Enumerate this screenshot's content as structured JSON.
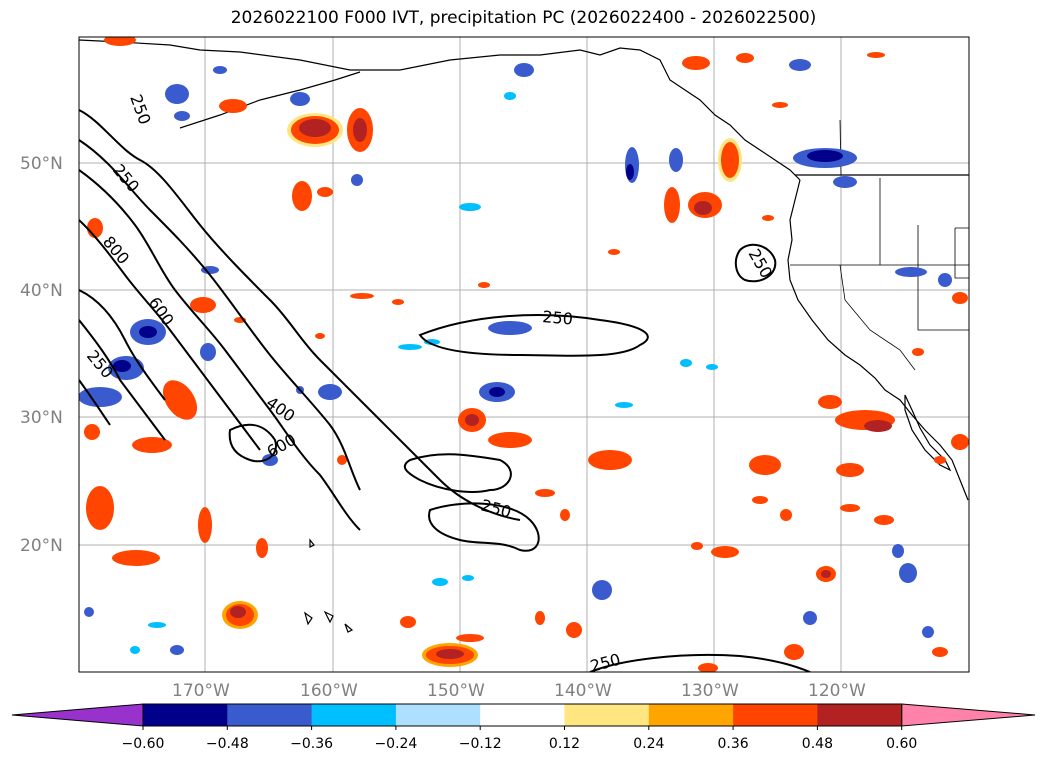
{
  "title": "2026022100 F000 IVT, precipitation PC (2026022400 - 2026022500)",
  "lat_labels": [
    "20°N",
    "30°N",
    "40°N",
    "50°N"
  ],
  "lon_labels": [
    "170°W",
    "160°W",
    "150°W",
    "140°W",
    "130°W",
    "120°W"
  ],
  "contour_labels": [
    "250",
    "250",
    "800",
    "600",
    "250",
    "400",
    "600",
    "250",
    "250",
    "250",
    "250"
  ],
  "colorbar": {
    "ticks": [
      "−0.60",
      "−0.48",
      "−0.36",
      "−0.24",
      "−0.12",
      "0.12",
      "0.24",
      "0.36",
      "0.48",
      "0.60"
    ],
    "colors": [
      "#9932cc",
      "#00008b",
      "#3a5bcd",
      "#00bfff",
      "#afdfff",
      "#ffffff",
      "#ffe680",
      "#ffa500",
      "#ff4500",
      "#b22222",
      "#ff82ab"
    ]
  }
}
